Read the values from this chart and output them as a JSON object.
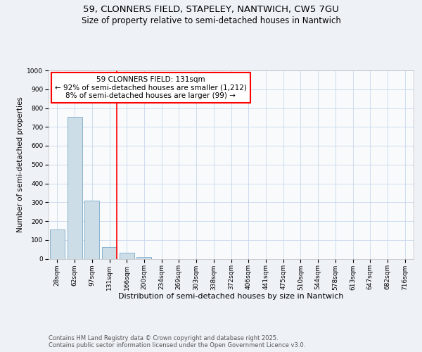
{
  "title1": "59, CLONNERS FIELD, STAPELEY, NANTWICH, CW5 7GU",
  "title2": "Size of property relative to semi-detached houses in Nantwich",
  "xlabel": "Distribution of semi-detached houses by size in Nantwich",
  "ylabel": "Number of semi-detached properties",
  "categories": [
    "28sqm",
    "62sqm",
    "97sqm",
    "131sqm",
    "166sqm",
    "200sqm",
    "234sqm",
    "269sqm",
    "303sqm",
    "338sqm",
    "372sqm",
    "406sqm",
    "441sqm",
    "475sqm",
    "510sqm",
    "544sqm",
    "578sqm",
    "613sqm",
    "647sqm",
    "682sqm",
    "716sqm"
  ],
  "values": [
    155,
    755,
    310,
    62,
    30,
    8,
    0,
    0,
    0,
    0,
    0,
    0,
    0,
    0,
    0,
    0,
    0,
    0,
    0,
    0,
    0
  ],
  "bar_color": "#ccdde8",
  "bar_edge_color": "#7aaac8",
  "vline_x_index": 3,
  "vline_color": "red",
  "annotation_text": "59 CLONNERS FIELD: 131sqm\n← 92% of semi-detached houses are smaller (1,212)\n8% of semi-detached houses are larger (99) →",
  "annotation_box_color": "white",
  "annotation_box_edge_color": "red",
  "ylim": [
    0,
    1000
  ],
  "yticks": [
    0,
    100,
    200,
    300,
    400,
    500,
    600,
    700,
    800,
    900,
    1000
  ],
  "background_color": "#eef2f7",
  "plot_bg_color": "#f8fafc",
  "grid_color": "#c8d8ec",
  "footer_text": "Contains HM Land Registry data © Crown copyright and database right 2025.\nContains public sector information licensed under the Open Government Licence v3.0.",
  "title1_fontsize": 9.5,
  "title2_fontsize": 8.5,
  "xlabel_fontsize": 8,
  "ylabel_fontsize": 7.5,
  "tick_fontsize": 6.5,
  "annotation_fontsize": 7.5,
  "footer_fontsize": 6
}
